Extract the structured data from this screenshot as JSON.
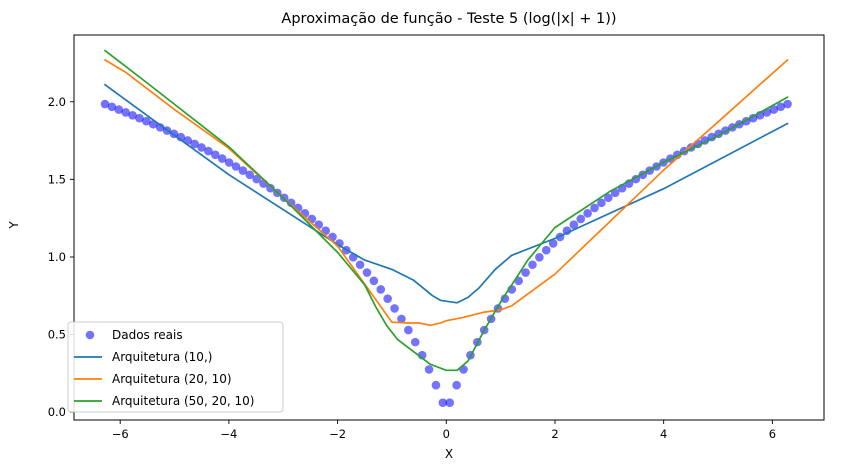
{
  "chart_data": {
    "type": "scatter+line",
    "title": "Aproximação de função - Teste 5 (log(|x| + 1))",
    "xlabel": "X",
    "ylabel": "Y",
    "xlim": [
      -6.85,
      6.95
    ],
    "ylim": [
      -0.05,
      2.43
    ],
    "xticks": [
      -6,
      -4,
      -2,
      0,
      2,
      4,
      6
    ],
    "xtick_labels": [
      "−6",
      "−4",
      "−2",
      "0",
      "2",
      "4",
      "6"
    ],
    "yticks": [
      0.0,
      0.5,
      1.0,
      1.5,
      2.0
    ],
    "ytick_labels": [
      "0.0",
      "0.5",
      "1.0",
      "1.5",
      "2.0"
    ],
    "grid": false,
    "legend_position": "lower-left",
    "scatter": {
      "name": "Dados reais",
      "color": "#0000ff",
      "function": "log(|x| + 1)",
      "x_range": [
        -6.28,
        6.28
      ],
      "n_points": 100
    },
    "series": [
      {
        "name": "Arquitetura (10,)",
        "color": "#1f77b4",
        "points": [
          [
            -6.28,
            2.11
          ],
          [
            -5.5,
            1.91
          ],
          [
            -4.0,
            1.53
          ],
          [
            -2.0,
            1.08
          ],
          [
            -1.5,
            0.98
          ],
          [
            -1.0,
            0.92
          ],
          [
            -0.6,
            0.85
          ],
          [
            -0.25,
            0.75
          ],
          [
            -0.1,
            0.72
          ],
          [
            0.2,
            0.705
          ],
          [
            0.4,
            0.74
          ],
          [
            0.6,
            0.8
          ],
          [
            0.9,
            0.92
          ],
          [
            1.2,
            1.01
          ],
          [
            2.0,
            1.12
          ],
          [
            4.0,
            1.44
          ],
          [
            6.28,
            1.86
          ]
        ]
      },
      {
        "name": "Arquitetura (20, 10)",
        "color": "#ff7f0e",
        "points": [
          [
            -6.28,
            2.27
          ],
          [
            -5.9,
            2.19
          ],
          [
            -5.0,
            1.95
          ],
          [
            -4.0,
            1.7
          ],
          [
            -3.0,
            1.38
          ],
          [
            -2.0,
            1.07
          ],
          [
            -1.0,
            0.58
          ],
          [
            -0.7,
            0.575
          ],
          [
            -0.5,
            0.575
          ],
          [
            -0.3,
            0.56
          ],
          [
            -0.1,
            0.575
          ],
          [
            0.0,
            0.59
          ],
          [
            0.3,
            0.61
          ],
          [
            0.7,
            0.645
          ],
          [
            1.0,
            0.66
          ],
          [
            1.2,
            0.685
          ],
          [
            2.0,
            0.89
          ],
          [
            4.0,
            1.56
          ],
          [
            5.0,
            1.87
          ],
          [
            6.28,
            2.27
          ]
        ]
      },
      {
        "name": "Arquitetura (50, 20, 10)",
        "color": "#2ca02c",
        "points": [
          [
            -6.28,
            2.33
          ],
          [
            -5.5,
            2.12
          ],
          [
            -4.0,
            1.71
          ],
          [
            -3.0,
            1.38
          ],
          [
            -2.0,
            1.03
          ],
          [
            -1.5,
            0.82
          ],
          [
            -1.3,
            0.68
          ],
          [
            -1.1,
            0.56
          ],
          [
            -0.9,
            0.47
          ],
          [
            -0.6,
            0.39
          ],
          [
            -0.3,
            0.31
          ],
          [
            0.0,
            0.27
          ],
          [
            0.2,
            0.27
          ],
          [
            0.4,
            0.33
          ],
          [
            0.7,
            0.53
          ],
          [
            1.0,
            0.71
          ],
          [
            1.5,
            0.98
          ],
          [
            2.0,
            1.19
          ],
          [
            3.0,
            1.42
          ],
          [
            4.0,
            1.61
          ],
          [
            5.0,
            1.78
          ],
          [
            6.28,
            2.03
          ]
        ]
      }
    ]
  }
}
